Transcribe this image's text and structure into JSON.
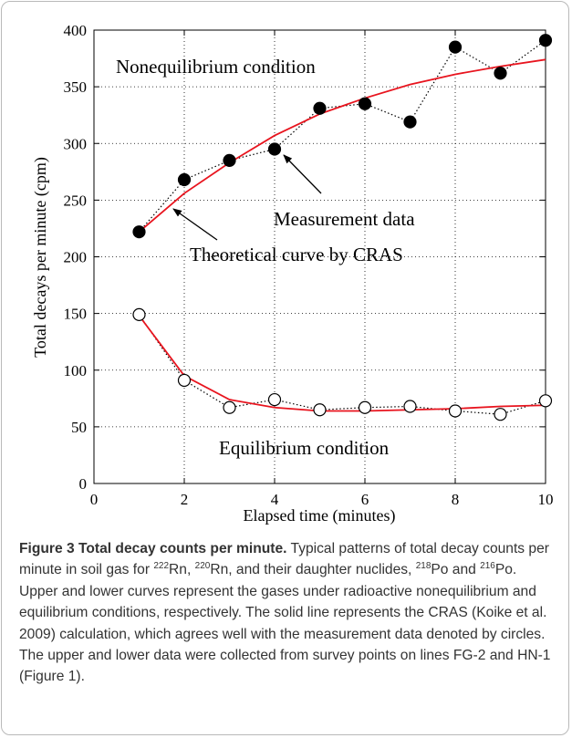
{
  "chart_data": {
    "type": "line",
    "xlabel": "Elapsed time (minutes)",
    "ylabel": "Total decays per minute (cpm)",
    "x": [
      1,
      2,
      3,
      4,
      5,
      6,
      7,
      8,
      9,
      10
    ],
    "series": [
      {
        "color": "#000000",
        "line": "dotted",
        "marker": "filled",
        "values": [
          222,
          268,
          285,
          295,
          331,
          335,
          319,
          385,
          362,
          391
        ]
      },
      {
        "color": "#e8141e",
        "line": "solid",
        "marker": "none",
        "values": [
          222,
          256,
          283,
          307,
          326,
          340,
          352,
          361,
          368,
          374
        ]
      },
      {
        "color": "#000000",
        "line": "dotted",
        "marker": "open",
        "values": [
          149,
          91,
          67,
          74,
          65,
          67,
          68,
          64,
          61,
          73
        ]
      },
      {
        "color": "#e8141e",
        "line": "solid",
        "marker": "none",
        "values": [
          148,
          95,
          74,
          67,
          64,
          64,
          65,
          66,
          68,
          69
        ]
      }
    ],
    "annotations": [
      "Nonequilibrium condition",
      "Measurement data",
      "Theoretical curve by CRAS",
      "Equilibrium condition"
    ],
    "xlim": [
      0,
      10
    ],
    "xticks": [
      0,
      2,
      4,
      6,
      8,
      10
    ],
    "ylim": [
      0,
      400
    ],
    "yticks": [
      0,
      50,
      100,
      150,
      200,
      250,
      300,
      350,
      400
    ],
    "grid": true
  },
  "caption": {
    "label": "Figure 3",
    "title": "Total decay counts per minute.",
    "text": [
      "Typical patterns of total decay counts per minute in soil gas for ",
      "Rn, ",
      "Rn, and their daughter nuclides, ",
      "Po and ",
      "Po. Upper and lower curves represent the gases under radioactive nonequilibrium and equilibrium conditions, respectively. The solid line represents the CRAS (Koike et al. 2009) calculation, which agrees well with the measurement data denoted by circles. The upper and lower data were collected from survey points on lines FG-2 and HN-1 (Figure 1)."
    ],
    "superscripts": [
      "222",
      "220",
      "218",
      "216"
    ]
  }
}
